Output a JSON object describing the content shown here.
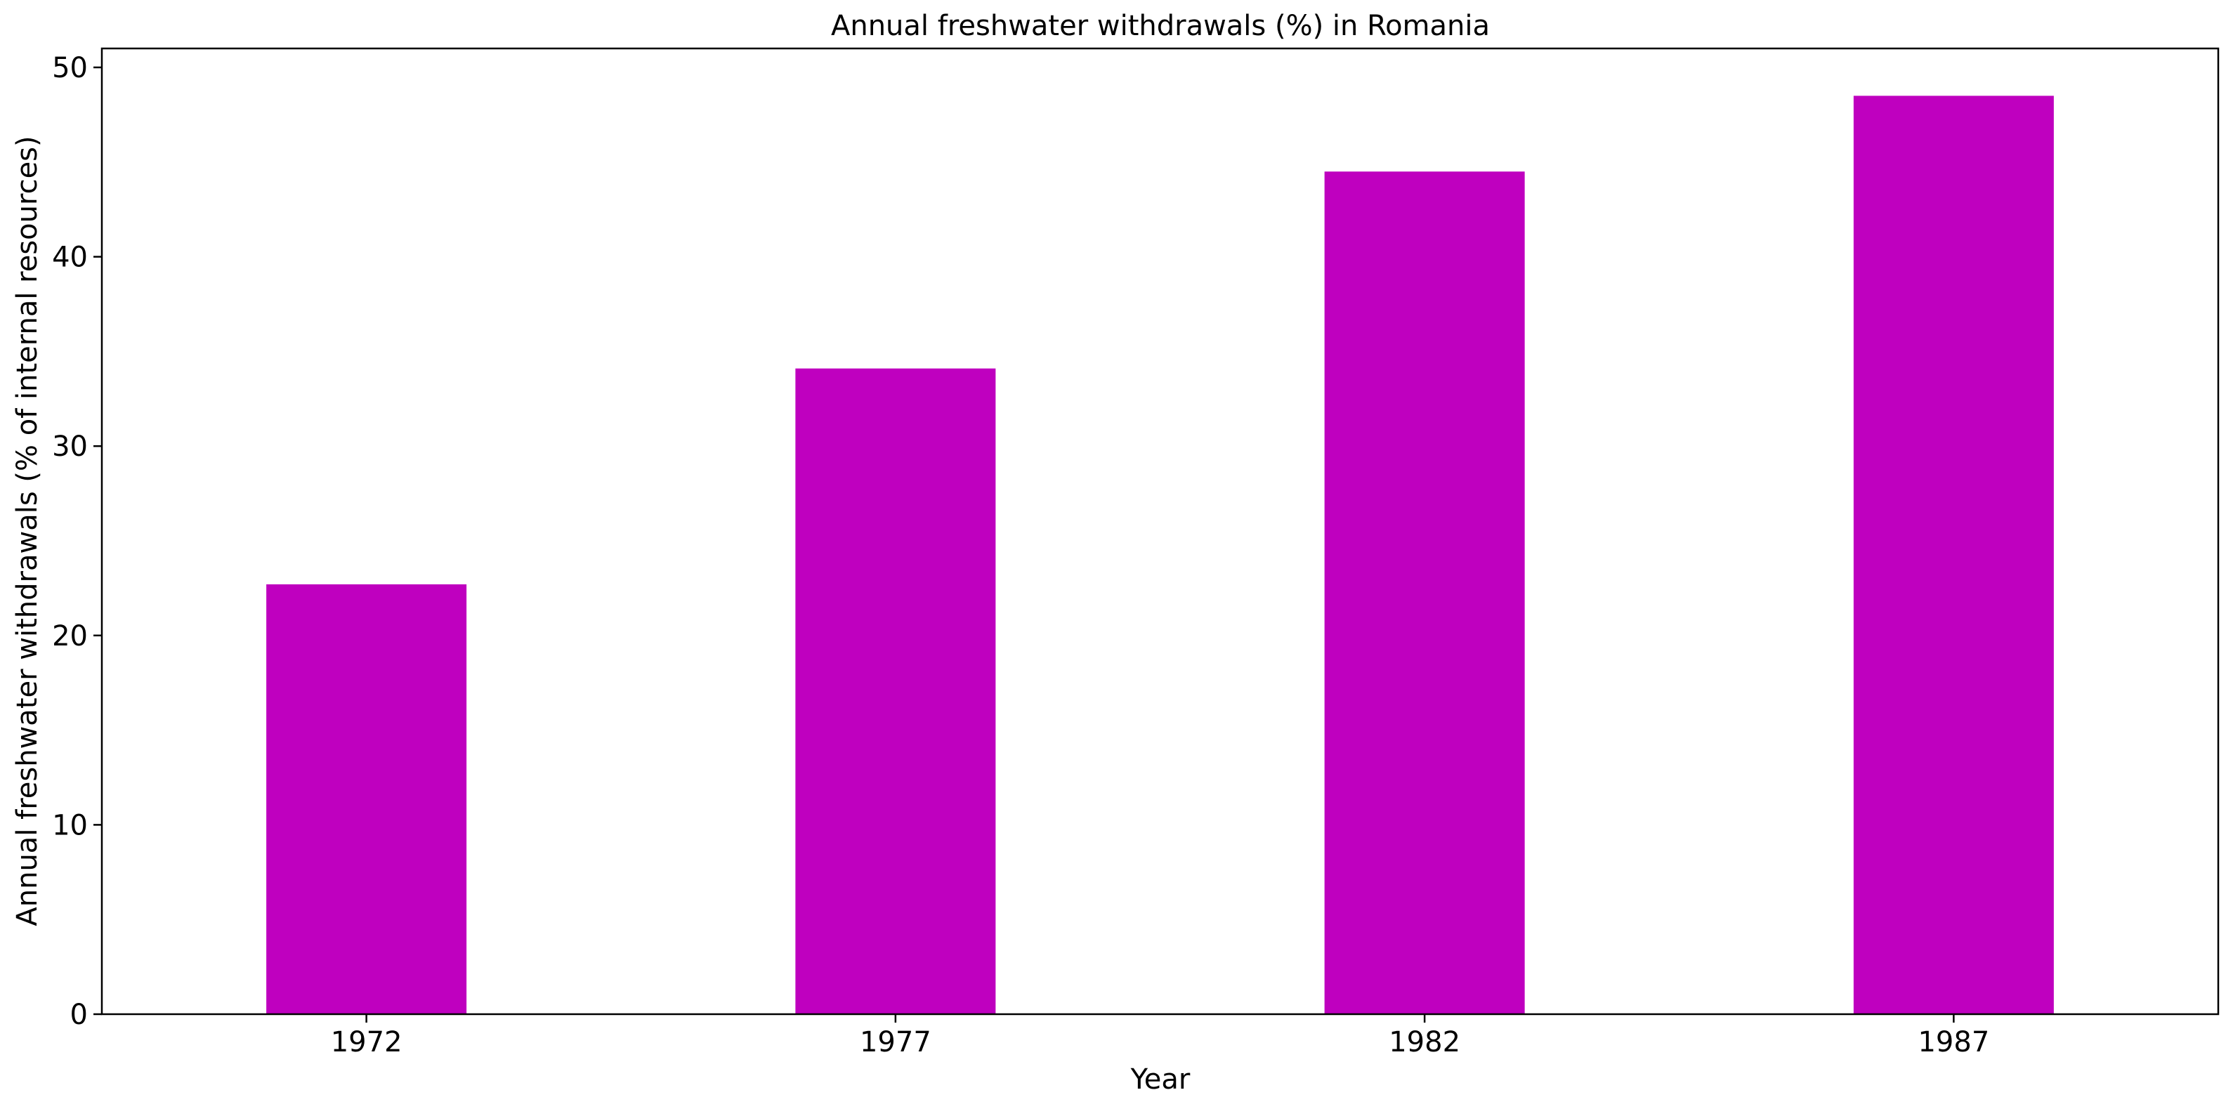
{
  "chart_data": {
    "type": "bar",
    "title": "Annual freshwater withdrawals (%) in Romania",
    "xlabel": "Year",
    "ylabel": "Annual freshwater withdrawals (% of internal resources)",
    "categories": [
      "1972",
      "1977",
      "1982",
      "1987"
    ],
    "values": [
      22.7,
      34.1,
      44.5,
      48.5
    ],
    "ylim": [
      0,
      51
    ],
    "yticks": [
      0,
      10,
      20,
      30,
      40,
      50
    ],
    "grid": false,
    "legend": "none",
    "bar_color": "#bf00bf"
  }
}
